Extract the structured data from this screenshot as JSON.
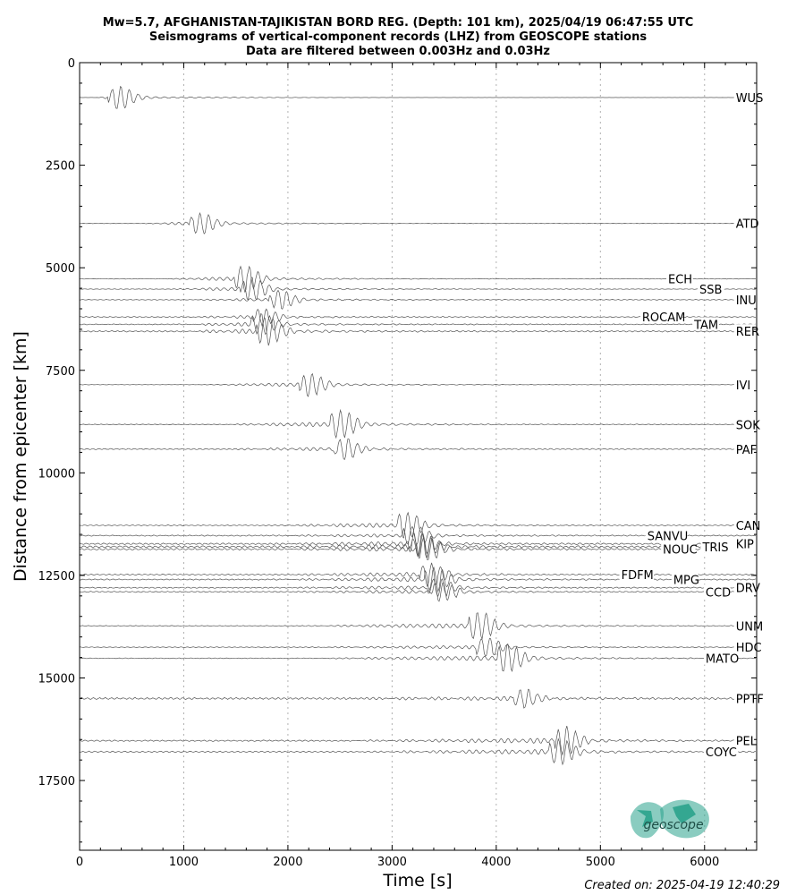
{
  "title": {
    "line1": "Mw=5.7, AFGHANISTAN-TAJIKISTAN BORD REG. (Depth: 101 km), 2025/04/19 06:47:55 UTC",
    "line2": "Seismograms of vertical-component records (LHZ) from GEOSCOPE stations",
    "line3": "Data are filtered between 0.003Hz and 0.03Hz"
  },
  "footer": "Created on: 2025-04-19 12:40:29",
  "logo": {
    "text": "geoscope",
    "color": "#2aa38c"
  },
  "chart_data": {
    "type": "line",
    "xlabel": "Time [s]",
    "ylabel": "Distance from epicenter [km]",
    "xlim": [
      0,
      6500
    ],
    "ylim": [
      19200,
      0
    ],
    "y_inverted": true,
    "xticks": [
      0,
      1000,
      2000,
      3000,
      4000,
      5000,
      6000
    ],
    "yticks": [
      0,
      2500,
      5000,
      7500,
      10000,
      12500,
      15000,
      17500
    ],
    "grid": "vertical dotted at x ticks",
    "trace_color": "#555555",
    "stations": [
      {
        "name": "WUS",
        "dist": 850,
        "arrival": 310,
        "amp": 1.0,
        "noise": 0.02,
        "label_x": 6300
      },
      {
        "name": "ATD",
        "dist": 3920,
        "arrival": 1100,
        "amp": 0.9,
        "noise": 0.1,
        "label_x": 6300
      },
      {
        "name": "ECH",
        "dist": 5270,
        "arrival": 1520,
        "amp": 1.1,
        "noise": 0.15,
        "label_x": 5650
      },
      {
        "name": "SSB",
        "dist": 5520,
        "arrival": 1580,
        "amp": 1.0,
        "noise": 0.15,
        "label_x": 5950
      },
      {
        "name": "INU",
        "dist": 5780,
        "arrival": 1860,
        "amp": 0.8,
        "noise": 0.2,
        "label_x": 6300
      },
      {
        "name": "ROCAM",
        "dist": 6200,
        "arrival": 1700,
        "amp": 0.7,
        "noise": 0.3,
        "label_x": 5400
      },
      {
        "name": "TAM",
        "dist": 6380,
        "arrival": 1680,
        "amp": 0.9,
        "noise": 0.25,
        "label_x": 5900
      },
      {
        "name": "RER",
        "dist": 6550,
        "arrival": 1740,
        "amp": 1.2,
        "noise": 0.35,
        "label_x": 6300
      },
      {
        "name": "IVI",
        "dist": 7850,
        "arrival": 2150,
        "amp": 1.0,
        "noise": 0.1,
        "label_x": 6300
      },
      {
        "name": "SOK",
        "dist": 8820,
        "arrival": 2450,
        "amp": 1.2,
        "noise": 0.2,
        "label_x": 6300
      },
      {
        "name": "PAF",
        "dist": 9420,
        "arrival": 2480,
        "amp": 0.9,
        "noise": 0.3,
        "label_x": 6300
      },
      {
        "name": "CAN",
        "dist": 11280,
        "arrival": 3080,
        "amp": 1.1,
        "noise": 0.25,
        "label_x": 6300
      },
      {
        "name": "SANVU",
        "dist": 11530,
        "arrival": 3150,
        "amp": 0.8,
        "noise": 0.3,
        "label_x": 5450
      },
      {
        "name": "KIP",
        "dist": 11730,
        "arrival": 3200,
        "amp": 1.0,
        "noise": 0.4,
        "label_x": 6300
      },
      {
        "name": "TRIS",
        "dist": 11800,
        "arrival": 3230,
        "amp": 1.0,
        "noise": 0.5,
        "label_x": 5980
      },
      {
        "name": "NOUC",
        "dist": 11860,
        "arrival": 3270,
        "amp": 1.0,
        "noise": 0.45,
        "label_x": 5600
      },
      {
        "name": "FDFM",
        "dist": 12480,
        "arrival": 3300,
        "amp": 1.0,
        "noise": 0.3,
        "label_x": 5200
      },
      {
        "name": "MPG",
        "dist": 12600,
        "arrival": 3350,
        "amp": 1.0,
        "noise": 0.3,
        "label_x": 5700
      },
      {
        "name": "DRV",
        "dist": 12800,
        "arrival": 3380,
        "amp": 0.8,
        "noise": 0.3,
        "label_x": 6300
      },
      {
        "name": "CCD",
        "dist": 12900,
        "arrival": 3420,
        "amp": 0.8,
        "noise": 0.3,
        "label_x": 6010
      },
      {
        "name": "UNM",
        "dist": 13730,
        "arrival": 3780,
        "amp": 1.2,
        "noise": 0.2,
        "label_x": 6300
      },
      {
        "name": "HDC",
        "dist": 14250,
        "arrival": 3850,
        "amp": 0.8,
        "noise": 0.2,
        "label_x": 6300
      },
      {
        "name": "MATO",
        "dist": 14520,
        "arrival": 4050,
        "amp": 1.2,
        "noise": 0.2,
        "label_x": 6010
      },
      {
        "name": "PPTF",
        "dist": 15500,
        "arrival": 4200,
        "amp": 0.8,
        "noise": 0.5,
        "label_x": 6300
      },
      {
        "name": "PEL",
        "dist": 16530,
        "arrival": 4600,
        "amp": 1.2,
        "noise": 0.35,
        "label_x": 6300
      },
      {
        "name": "COYC",
        "dist": 16800,
        "arrival": 4550,
        "amp": 1.1,
        "noise": 0.35,
        "label_x": 6010
      }
    ]
  }
}
